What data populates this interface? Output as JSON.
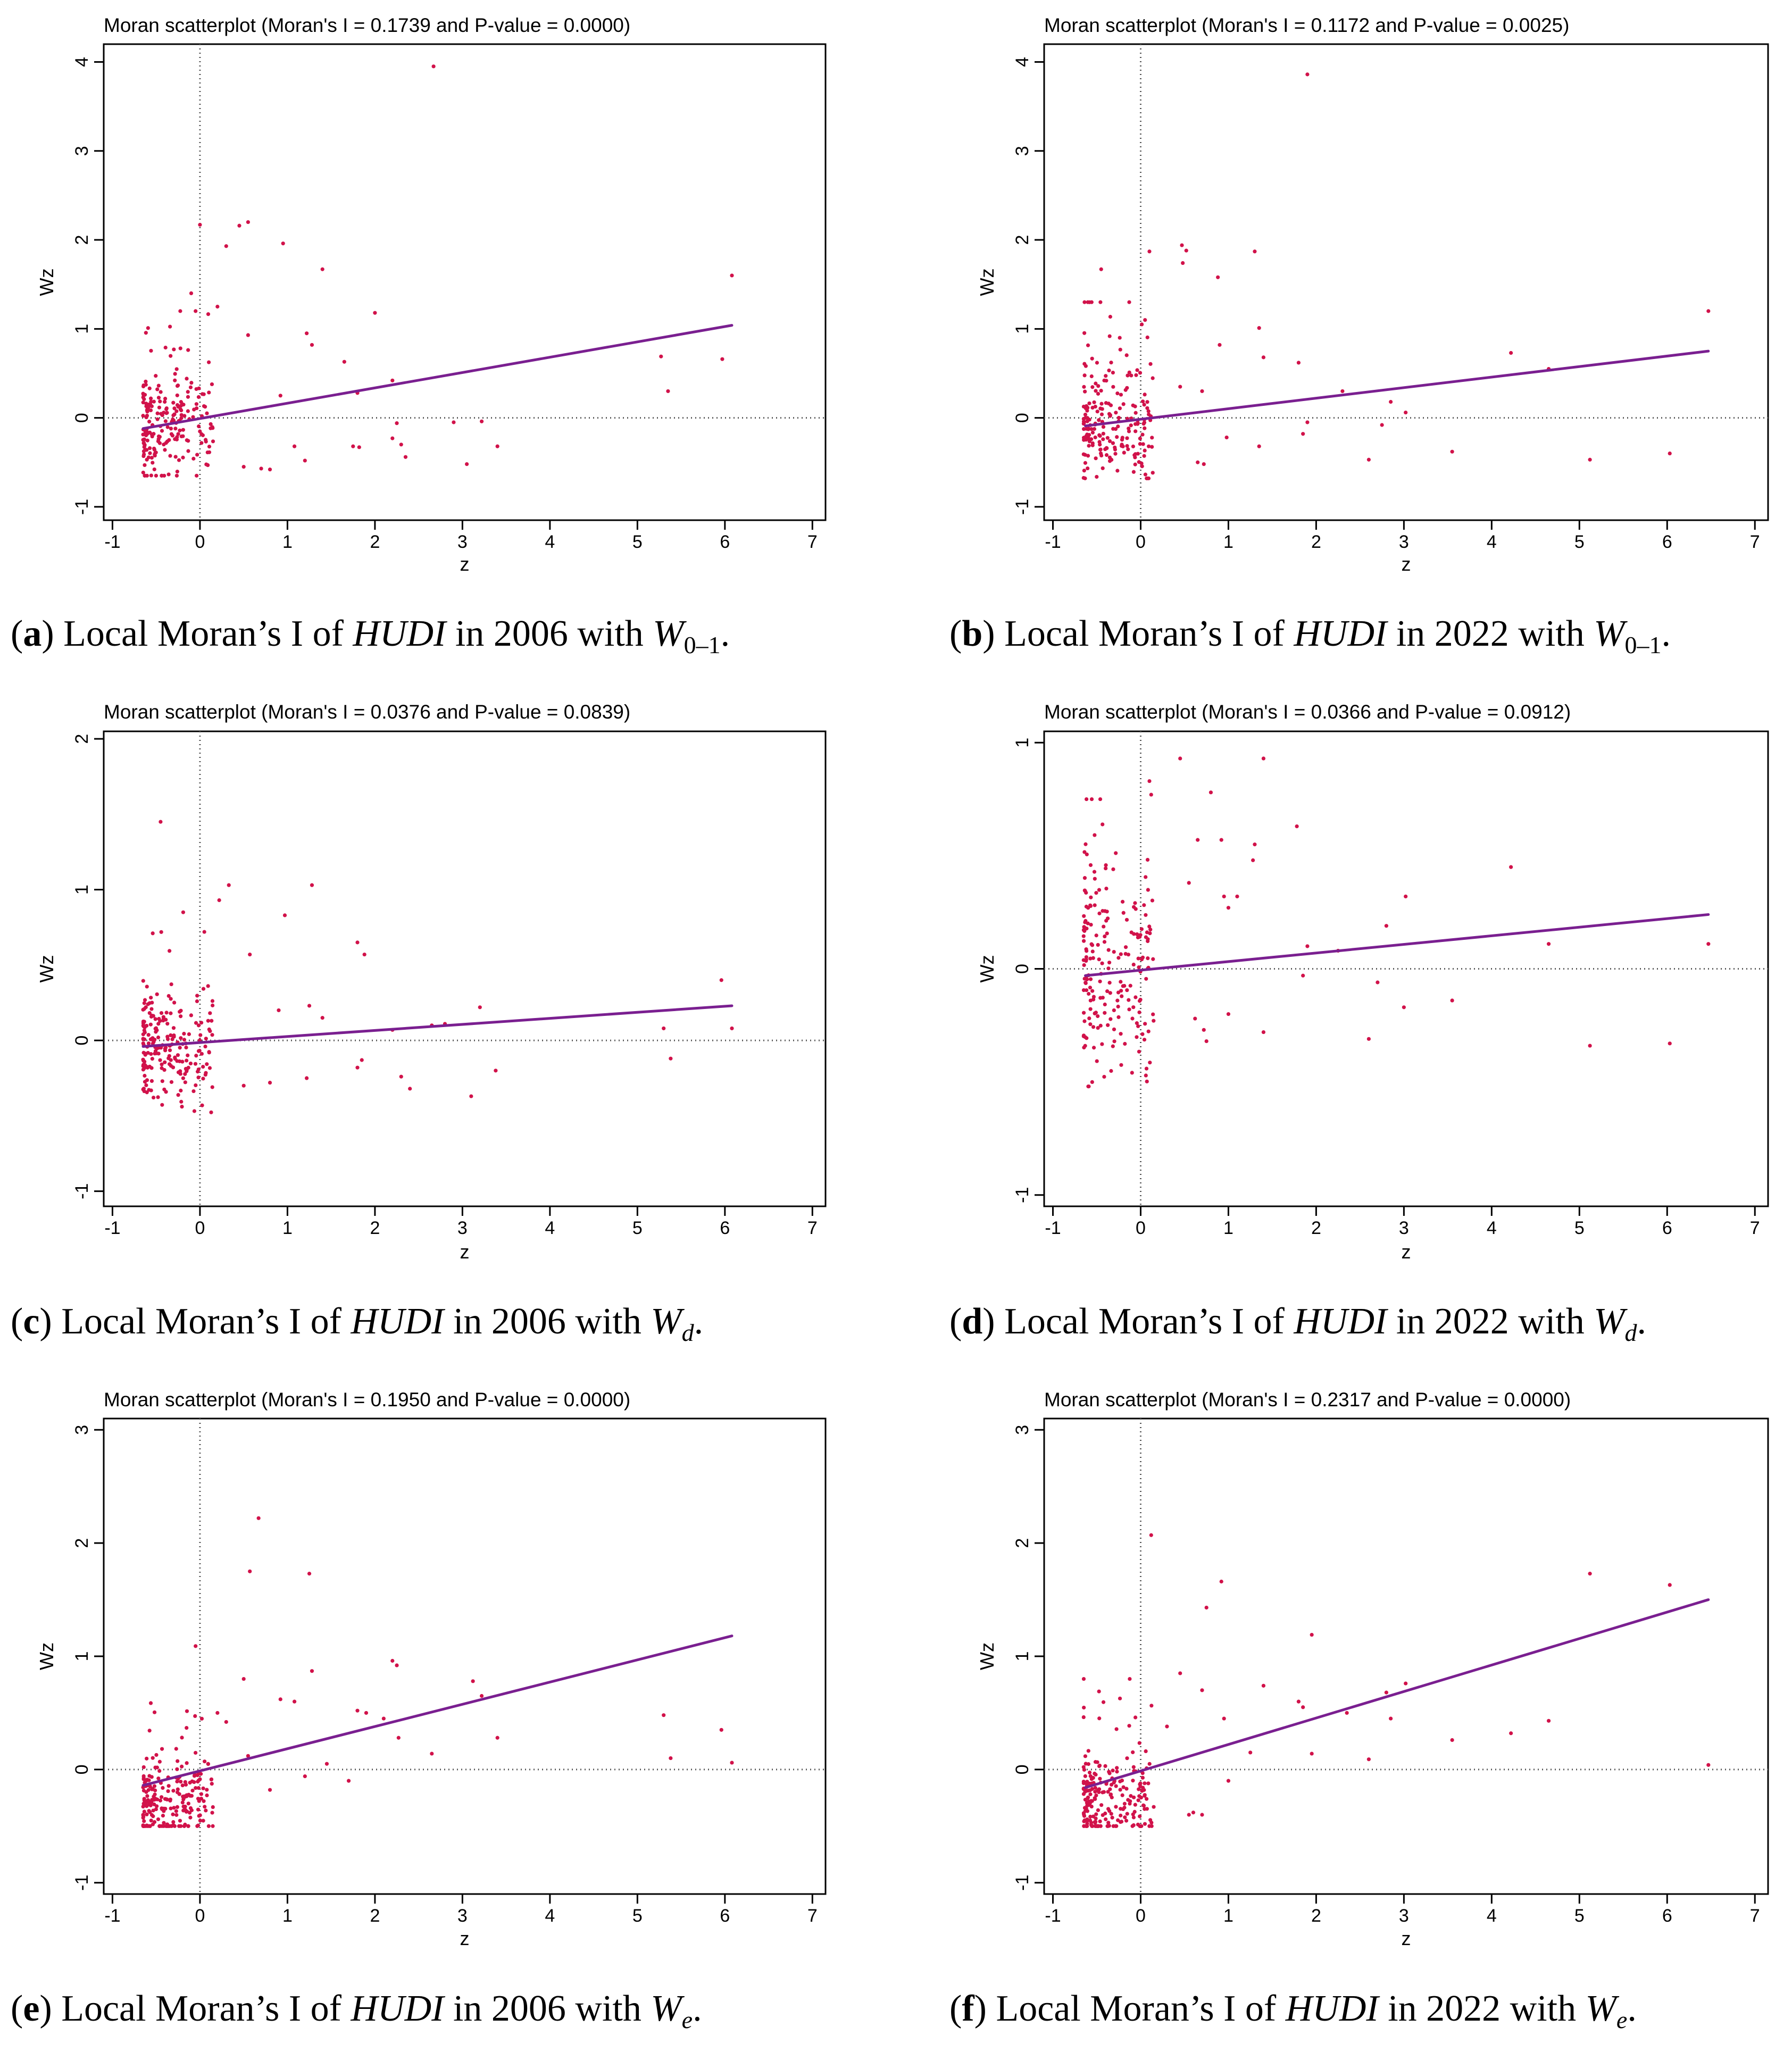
{
  "chart_data": [
    {
      "panel": "a",
      "type": "scatter",
      "title": "Moran scatterplot (Moran's I = 0.1739 and P-value = 0.0000)",
      "xlabel": "z",
      "ylabel": "Wz",
      "xlim": [
        -1.1,
        7.15
      ],
      "ylim": [
        -1.15,
        4.2
      ],
      "xticks": [
        -1,
        0,
        1,
        2,
        3,
        4,
        5,
        6,
        7
      ],
      "yticks": [
        -1,
        0,
        1,
        2,
        3,
        4
      ],
      "fit_line": {
        "x": [
          -0.65,
          6.08
        ],
        "y": [
          -0.12,
          1.04
        ]
      },
      "outliers": [
        [
          2.67,
          3.95
        ],
        [
          6.08,
          1.6
        ],
        [
          0.55,
          2.2
        ],
        [
          0.45,
          2.16
        ],
        [
          0.0,
          2.17
        ],
        [
          0.95,
          1.96
        ],
        [
          0.3,
          1.93
        ],
        [
          1.4,
          1.67
        ],
        [
          -0.1,
          1.4
        ],
        [
          0.2,
          1.25
        ],
        [
          -0.05,
          1.2
        ],
        [
          1.22,
          0.95
        ],
        [
          1.28,
          0.82
        ],
        [
          2.0,
          1.18
        ],
        [
          0.55,
          0.93
        ],
        [
          1.65,
          0.63
        ],
        [
          5.27,
          0.69
        ],
        [
          5.97,
          0.66
        ],
        [
          5.35,
          0.3
        ],
        [
          1.8,
          0.28
        ],
        [
          2.2,
          0.42
        ],
        [
          0.92,
          0.25
        ],
        [
          2.9,
          -0.05
        ],
        [
          3.22,
          -0.04
        ],
        [
          2.2,
          -0.23
        ],
        [
          2.3,
          -0.3
        ],
        [
          1.75,
          -0.32
        ],
        [
          1.82,
          -0.33
        ],
        [
          2.35,
          -0.44
        ],
        [
          3.05,
          -0.52
        ],
        [
          3.4,
          -0.32
        ],
        [
          0.5,
          -0.55
        ],
        [
          0.7,
          -0.57
        ],
        [
          0.8,
          -0.58
        ],
        [
          1.2,
          -0.48
        ],
        [
          1.08,
          -0.32
        ],
        [
          2.25,
          -0.06
        ]
      ],
      "cluster": {
        "seed": 11,
        "n": 215,
        "xrange": [
          -0.65,
          0.15
        ],
        "ymean": -0.08,
        "yspread": 0.3,
        "ymin": -0.65,
        "ymax": 1.2
      },
      "caption": {
        "letter": "a",
        "pre": "Local Moran’s I of ",
        "var": "HUDI",
        "mid": " in 2006 with ",
        "w": "W",
        "sub": "0–1"
      }
    },
    {
      "panel": "b",
      "type": "scatter",
      "title": "Moran scatterplot (Moran's I = 0.1172 and P-value = 0.0025)",
      "xlabel": "z",
      "ylabel": "Wz",
      "xlim": [
        -1.1,
        7.15
      ],
      "ylim": [
        -1.15,
        4.2
      ],
      "xticks": [
        -1,
        0,
        1,
        2,
        3,
        4,
        5,
        6,
        7
      ],
      "yticks": [
        -1,
        0,
        1,
        2,
        3,
        4
      ],
      "fit_line": {
        "x": [
          -0.63,
          6.47
        ],
        "y": [
          -0.09,
          0.75
        ]
      },
      "outliers": [
        [
          1.9,
          3.86
        ],
        [
          0.1,
          1.87
        ],
        [
          0.47,
          1.94
        ],
        [
          0.52,
          1.88
        ],
        [
          1.3,
          1.87
        ],
        [
          0.88,
          1.58
        ],
        [
          0.48,
          1.74
        ],
        [
          -0.45,
          1.67
        ],
        [
          6.47,
          1.2
        ],
        [
          0.05,
          1.1
        ],
        [
          1.35,
          1.01
        ],
        [
          0.9,
          0.82
        ],
        [
          1.8,
          0.62
        ],
        [
          4.22,
          0.73
        ],
        [
          4.65,
          0.55
        ],
        [
          1.4,
          0.68
        ],
        [
          2.3,
          0.3
        ],
        [
          2.85,
          0.18
        ],
        [
          3.02,
          0.06
        ],
        [
          0.45,
          0.35
        ],
        [
          0.7,
          0.3
        ],
        [
          1.9,
          -0.05
        ],
        [
          2.75,
          -0.08
        ],
        [
          2.6,
          -0.47
        ],
        [
          3.55,
          -0.38
        ],
        [
          5.12,
          -0.47
        ],
        [
          6.03,
          -0.4
        ],
        [
          0.72,
          -0.52
        ],
        [
          0.65,
          -0.5
        ],
        [
          1.35,
          -0.32
        ],
        [
          0.98,
          -0.22
        ],
        [
          1.85,
          -0.18
        ]
      ],
      "cluster": {
        "seed": 23,
        "n": 210,
        "xrange": [
          -0.65,
          0.15
        ],
        "ymean": -0.1,
        "yspread": 0.32,
        "ymin": -0.68,
        "ymax": 1.3
      },
      "caption": {
        "letter": "b",
        "pre": "Local Moran’s I of ",
        "var": "HUDI",
        "mid": " in 2022 with ",
        "w": "W",
        "sub": "0–1"
      }
    },
    {
      "panel": "c",
      "type": "scatter",
      "title": "Moran scatterplot (Moran's I = 0.0376 and P-value = 0.0839)",
      "xlabel": "z",
      "ylabel": "Wz",
      "xlim": [
        -1.1,
        7.15
      ],
      "ylim": [
        -1.1,
        2.05
      ],
      "xticks": [
        -1,
        0,
        1,
        2,
        3,
        4,
        5,
        6,
        7
      ],
      "yticks": [
        -1,
        0,
        1,
        2
      ],
      "fit_line": {
        "x": [
          -0.65,
          6.08
        ],
        "y": [
          -0.04,
          0.23
        ]
      },
      "outliers": [
        [
          -0.45,
          1.45
        ],
        [
          0.33,
          1.03
        ],
        [
          1.28,
          1.03
        ],
        [
          0.97,
          0.83
        ],
        [
          0.22,
          0.93
        ],
        [
          0.57,
          0.57
        ],
        [
          1.8,
          0.65
        ],
        [
          1.88,
          0.57
        ],
        [
          0.05,
          0.72
        ],
        [
          5.96,
          0.4
        ],
        [
          0.9,
          0.2
        ],
        [
          1.25,
          0.23
        ],
        [
          1.4,
          0.15
        ],
        [
          3.2,
          0.22
        ],
        [
          2.8,
          0.11
        ],
        [
          2.2,
          0.07
        ],
        [
          5.3,
          0.08
        ],
        [
          6.08,
          0.08
        ],
        [
          5.38,
          -0.12
        ],
        [
          3.1,
          -0.37
        ],
        [
          3.38,
          -0.2
        ],
        [
          1.8,
          -0.18
        ],
        [
          1.85,
          -0.13
        ],
        [
          2.3,
          -0.24
        ],
        [
          2.4,
          -0.32
        ],
        [
          0.5,
          -0.3
        ],
        [
          0.8,
          -0.28
        ],
        [
          1.22,
          -0.25
        ],
        [
          2.65,
          0.1
        ]
      ],
      "cluster": {
        "seed": 37,
        "n": 220,
        "xrange": [
          -0.65,
          0.15
        ],
        "ymean": -0.08,
        "yspread": 0.2,
        "ymin": -0.6,
        "ymax": 0.85
      },
      "caption": {
        "letter": "c",
        "pre": "Local Moran’s I of ",
        "var": "HUDI",
        "mid": " in 2006 with ",
        "w": "W",
        "sub": "d"
      }
    },
    {
      "panel": "d",
      "type": "scatter",
      "title": "Moran scatterplot (Moran's I = 0.0366 and P-value = 0.0912)",
      "xlabel": "z",
      "ylabel": "Wz",
      "xlim": [
        -1.1,
        7.15
      ],
      "ylim": [
        -1.05,
        1.05
      ],
      "xticks": [
        -1,
        0,
        1,
        2,
        3,
        4,
        5,
        6,
        7
      ],
      "yticks": [
        -1,
        0,
        1
      ],
      "fit_line": {
        "x": [
          -0.63,
          6.47
        ],
        "y": [
          -0.03,
          0.24
        ]
      },
      "outliers": [
        [
          0.45,
          0.93
        ],
        [
          1.4,
          0.93
        ],
        [
          0.1,
          0.83
        ],
        [
          0.12,
          0.77
        ],
        [
          0.8,
          0.78
        ],
        [
          1.78,
          0.63
        ],
        [
          0.65,
          0.57
        ],
        [
          0.92,
          0.57
        ],
        [
          1.28,
          0.48
        ],
        [
          1.3,
          0.55
        ],
        [
          0.55,
          0.38
        ],
        [
          0.95,
          0.32
        ],
        [
          1.1,
          0.32
        ],
        [
          1.0,
          0.27
        ],
        [
          4.22,
          0.45
        ],
        [
          3.02,
          0.32
        ],
        [
          2.8,
          0.19
        ],
        [
          6.47,
          0.11
        ],
        [
          4.65,
          0.11
        ],
        [
          1.9,
          0.1
        ],
        [
          2.25,
          0.08
        ],
        [
          1.85,
          -0.03
        ],
        [
          2.7,
          -0.06
        ],
        [
          3.55,
          -0.14
        ],
        [
          3.0,
          -0.17
        ],
        [
          2.6,
          -0.31
        ],
        [
          5.12,
          -0.34
        ],
        [
          6.03,
          -0.33
        ],
        [
          0.62,
          -0.22
        ],
        [
          0.72,
          -0.27
        ],
        [
          0.75,
          -0.32
        ],
        [
          1.0,
          -0.2
        ],
        [
          1.4,
          -0.28
        ]
      ],
      "cluster": {
        "seed": 53,
        "n": 205,
        "xrange": [
          -0.65,
          0.15
        ],
        "ymean": -0.02,
        "yspread": 0.24,
        "ymin": -0.52,
        "ymax": 0.75
      },
      "caption": {
        "letter": "d",
        "pre": "Local Moran’s I of ",
        "var": "HUDI",
        "mid": " in 2022 with ",
        "w": "W",
        "sub": "d"
      }
    },
    {
      "panel": "e",
      "type": "scatter",
      "title": "Moran scatterplot (Moran's I = 0.1950 and P-value = 0.0000)",
      "xlabel": "z",
      "ylabel": "Wz",
      "xlim": [
        -1.1,
        7.15
      ],
      "ylim": [
        -1.1,
        3.1
      ],
      "xticks": [
        -1,
        0,
        1,
        2,
        3,
        4,
        5,
        6,
        7
      ],
      "yticks": [
        -1,
        0,
        1,
        2,
        3
      ],
      "fit_line": {
        "x": [
          -0.65,
          6.08
        ],
        "y": [
          -0.14,
          1.18
        ]
      },
      "outliers": [
        [
          0.67,
          2.22
        ],
        [
          0.57,
          1.75
        ],
        [
          1.25,
          1.73
        ],
        [
          -0.05,
          1.09
        ],
        [
          1.28,
          0.87
        ],
        [
          0.5,
          0.8
        ],
        [
          0.92,
          0.62
        ],
        [
          1.08,
          0.6
        ],
        [
          1.8,
          0.52
        ],
        [
          1.9,
          0.5
        ],
        [
          2.2,
          0.96
        ],
        [
          2.25,
          0.92
        ],
        [
          3.12,
          0.78
        ],
        [
          3.22,
          0.65
        ],
        [
          5.3,
          0.48
        ],
        [
          2.1,
          0.45
        ],
        [
          5.96,
          0.35
        ],
        [
          2.27,
          0.28
        ],
        [
          3.4,
          0.28
        ],
        [
          2.65,
          0.14
        ],
        [
          5.38,
          0.1
        ],
        [
          6.08,
          0.06
        ],
        [
          1.45,
          0.05
        ],
        [
          1.7,
          -0.1
        ],
        [
          0.8,
          -0.18
        ],
        [
          1.2,
          -0.06
        ],
        [
          0.55,
          0.12
        ],
        [
          0.3,
          0.42
        ],
        [
          0.2,
          0.5
        ]
      ],
      "cluster": {
        "seed": 71,
        "n": 225,
        "xrange": [
          -0.65,
          0.15
        ],
        "ymean": -0.28,
        "yspread": 0.18,
        "ymin": -0.5,
        "ymax": 0.62
      },
      "caption": {
        "letter": "e",
        "pre": "Local Moran’s I of ",
        "var": "HUDI",
        "mid": " in 2006 with ",
        "w": "W",
        "sub": "e"
      }
    },
    {
      "panel": "f",
      "type": "scatter",
      "title": "Moran scatterplot (Moran's I = 0.2317 and P-value = 0.0000)",
      "xlabel": "z",
      "ylabel": "Wz",
      "xlim": [
        -1.1,
        7.15
      ],
      "ylim": [
        -1.1,
        3.1
      ],
      "xticks": [
        -1,
        0,
        1,
        2,
        3,
        4,
        5,
        6,
        7
      ],
      "yticks": [
        -1,
        0,
        1,
        2,
        3
      ],
      "fit_line": {
        "x": [
          -0.63,
          6.47
        ],
        "y": [
          -0.16,
          1.5
        ]
      },
      "outliers": [
        [
          0.12,
          2.07
        ],
        [
          0.92,
          1.66
        ],
        [
          5.12,
          1.73
        ],
        [
          6.03,
          1.63
        ],
        [
          0.75,
          1.43
        ],
        [
          1.95,
          1.19
        ],
        [
          0.45,
          0.85
        ],
        [
          0.7,
          0.7
        ],
        [
          1.4,
          0.74
        ],
        [
          1.8,
          0.6
        ],
        [
          1.85,
          0.55
        ],
        [
          2.8,
          0.68
        ],
        [
          3.02,
          0.76
        ],
        [
          2.35,
          0.5
        ],
        [
          2.85,
          0.45
        ],
        [
          4.65,
          0.43
        ],
        [
          3.55,
          0.26
        ],
        [
          4.22,
          0.32
        ],
        [
          1.95,
          0.14
        ],
        [
          2.6,
          0.09
        ],
        [
          6.47,
          0.04
        ],
        [
          0.55,
          -0.4
        ],
        [
          0.6,
          -0.38
        ],
        [
          0.7,
          -0.4
        ],
        [
          1.0,
          -0.1
        ],
        [
          1.25,
          0.15
        ],
        [
          0.3,
          0.38
        ],
        [
          0.95,
          0.45
        ]
      ],
      "cluster": {
        "seed": 97,
        "n": 220,
        "xrange": [
          -0.65,
          0.15
        ],
        "ymean": -0.28,
        "yspread": 0.18,
        "ymin": -0.5,
        "ymax": 0.8
      },
      "caption": {
        "letter": "f",
        "pre": "Local Moran’s I of ",
        "var": "HUDI",
        "mid": " in 2022 with ",
        "w": "W",
        "sub": "e"
      }
    }
  ],
  "colors": {
    "points": "#d1124a",
    "fit_line": "#7a1f90",
    "frame": "#000000",
    "reference_line": "#555555"
  }
}
